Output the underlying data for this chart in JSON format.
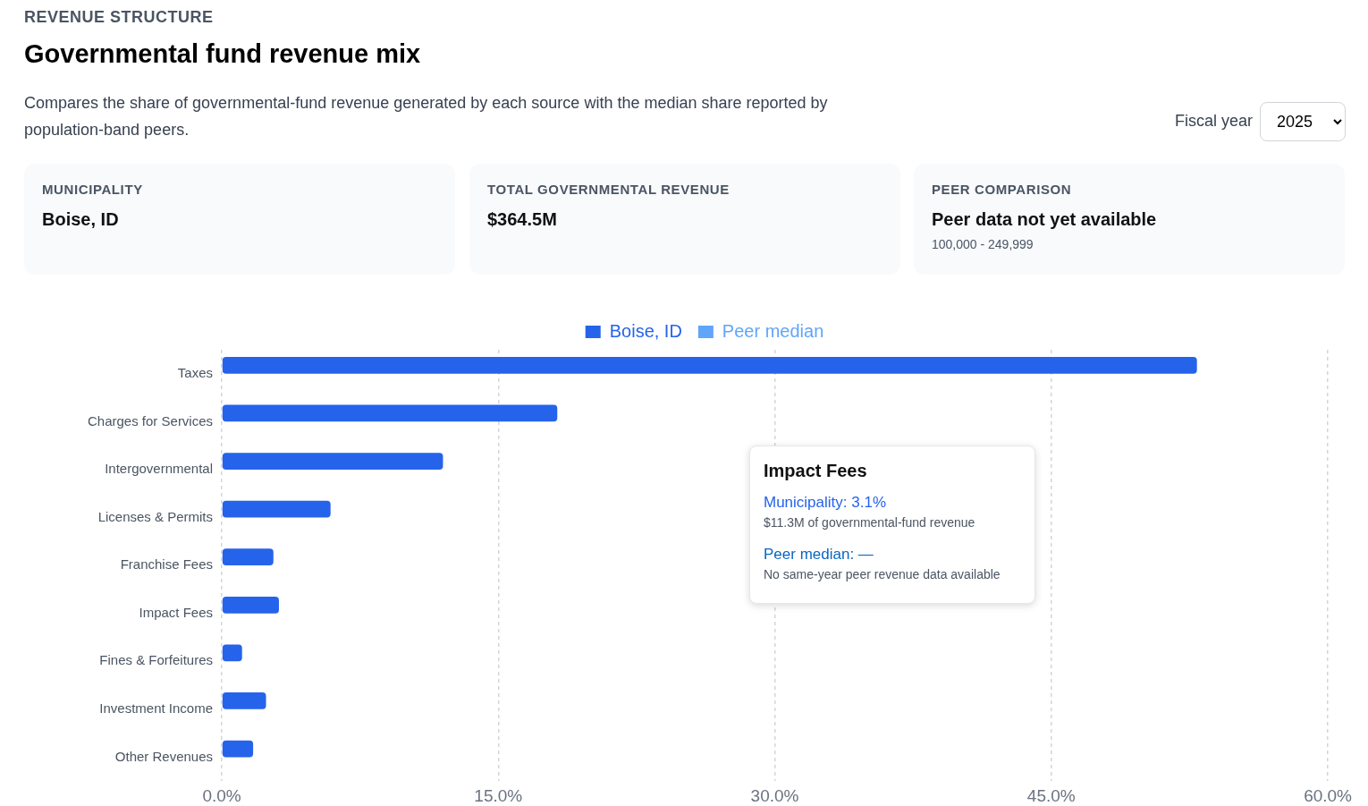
{
  "chart_data": {
    "type": "bar",
    "orientation": "horizontal",
    "title": "Governmental fund revenue mix",
    "subtitle": "Compares the share of governmental-fund revenue generated by each source with the median share reported by population-band peers.",
    "categories": [
      "Taxes",
      "Charges for Services",
      "Intergovernmental",
      "Licenses & Permits",
      "Franchise Fees",
      "Impact Fees",
      "Fines & Forfeitures",
      "Investment Income",
      "Other Revenues"
    ],
    "series": [
      {
        "name": "Boise, ID",
        "color": "#2563eb",
        "values": [
          52.9,
          18.2,
          12.0,
          5.9,
          2.8,
          3.1,
          1.1,
          2.4,
          1.7
        ]
      },
      {
        "name": "Peer median",
        "color": "#60a5fa",
        "values": [
          null,
          null,
          null,
          null,
          null,
          null,
          null,
          null,
          null
        ]
      }
    ],
    "xlim": [
      0,
      60
    ],
    "xticks": [
      {
        "value": 0,
        "label": "0.0%"
      },
      {
        "value": 15,
        "label": "15.0%"
      },
      {
        "value": 30,
        "label": "30.0%"
      },
      {
        "value": 45,
        "label": "45.0%"
      },
      {
        "value": 60,
        "label": "60.0%"
      }
    ],
    "grid": "x",
    "legend": "top",
    "annotations": [
      "REVENUE STRUCTURE",
      "Fiscal year",
      "2025",
      "MUNICIPALITY",
      "Boise, ID",
      "TOTAL GOVERNMENTAL REVENUE",
      "$364.5M",
      "PEER COMPARISON",
      "Peer data not yet available",
      "100,000 - 249,999",
      "Impact Fees",
      "Municipality: 3.1%",
      "$11.3M of governmental-fund revenue",
      "Peer median: —",
      "No same-year peer revenue data available"
    ]
  }
}
